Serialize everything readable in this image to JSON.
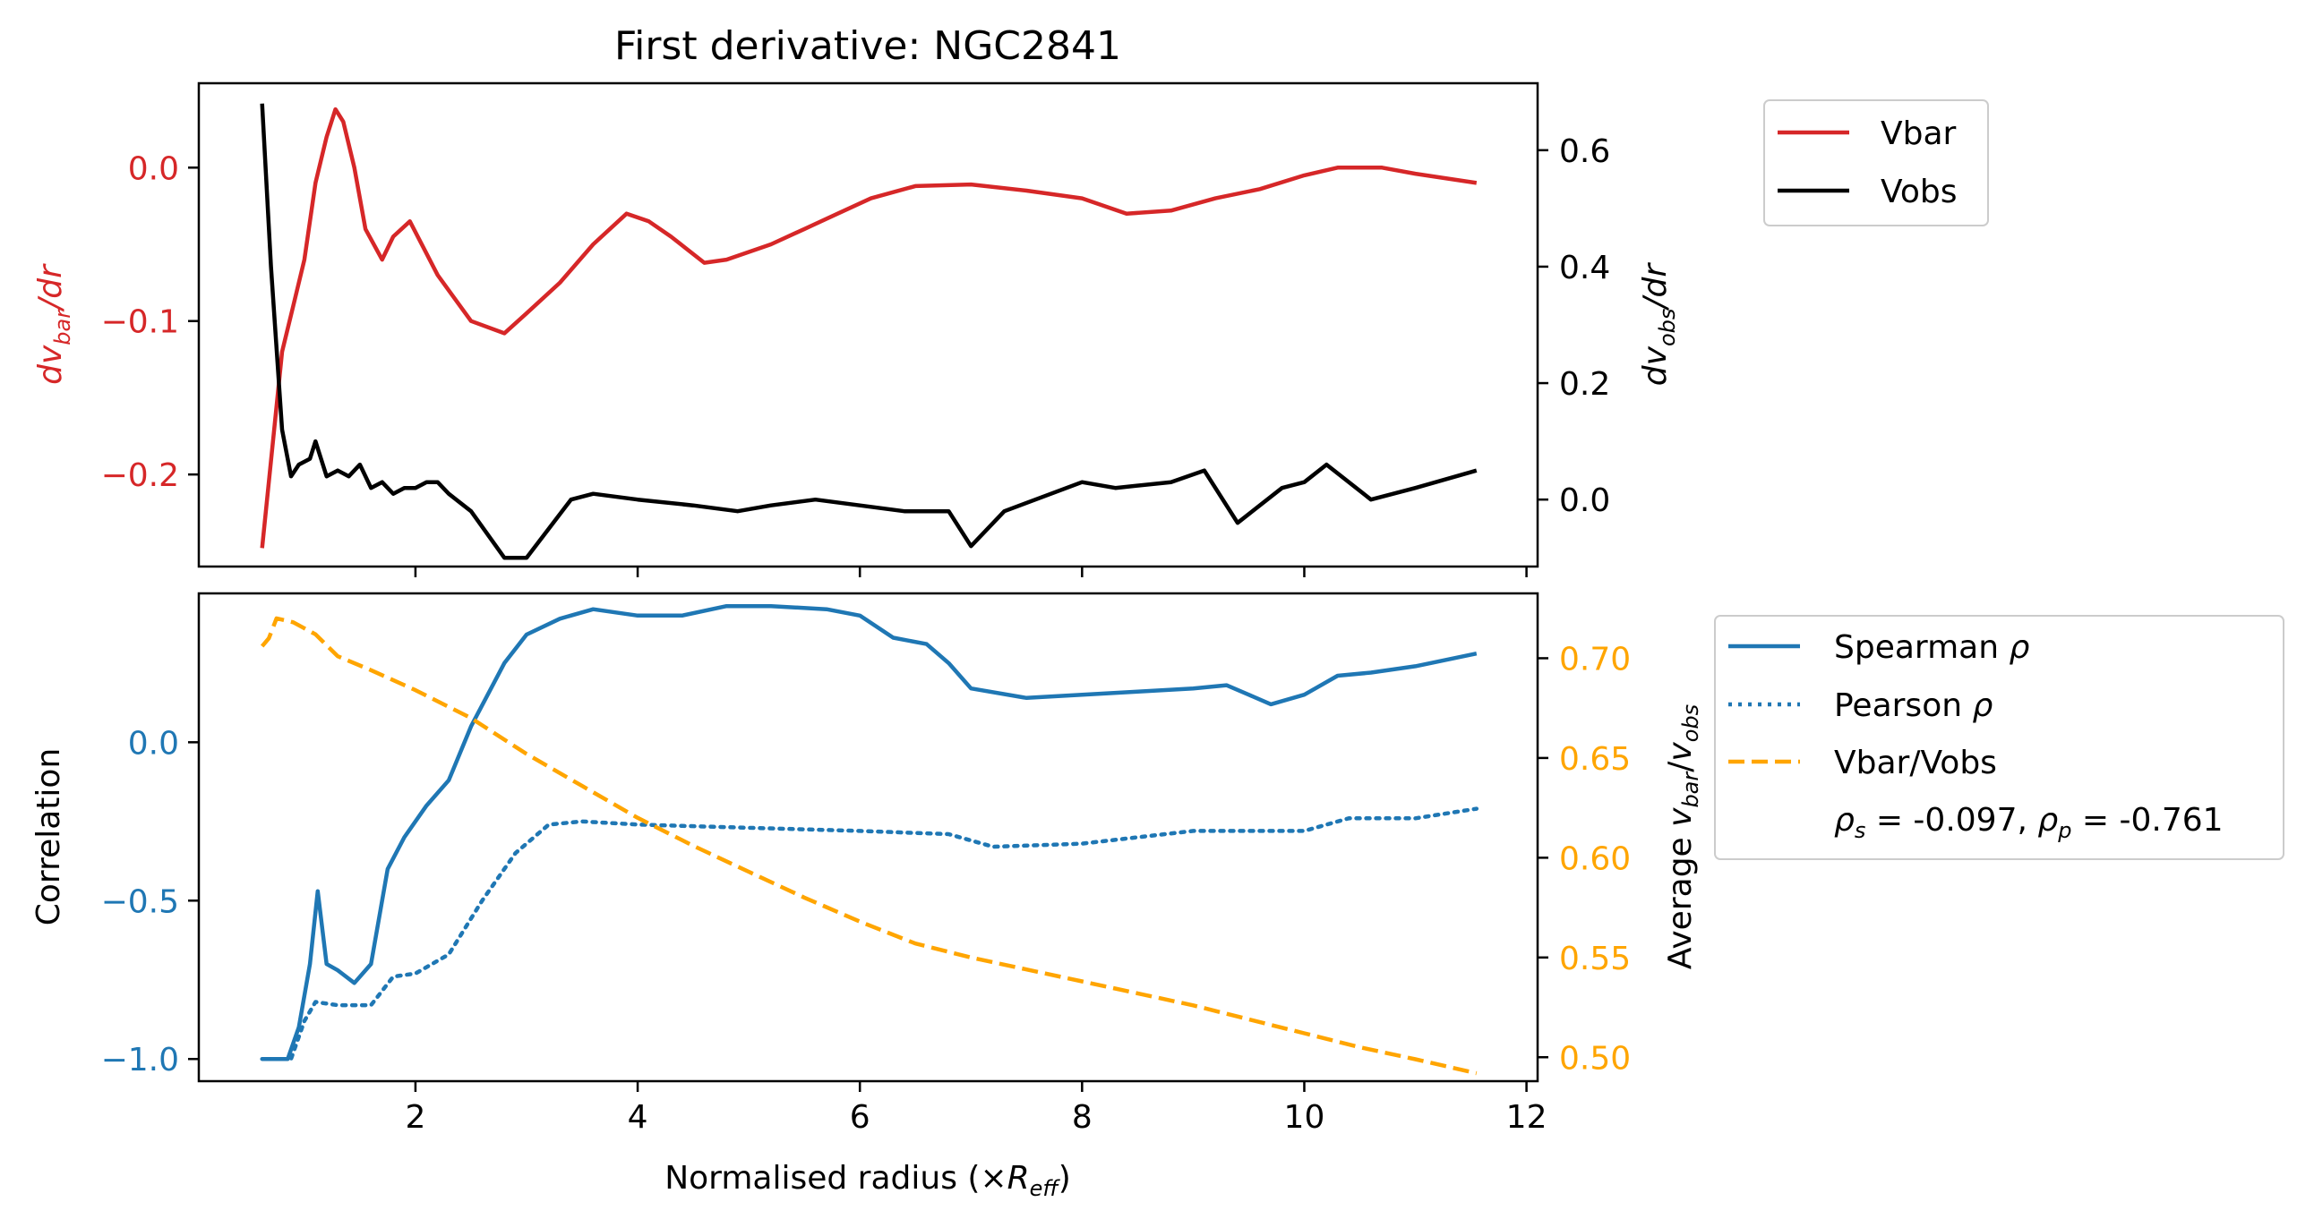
{
  "chart_data": [
    {
      "type": "line",
      "title": "First derivative: NGC2841",
      "ylabel_left": {
        "main": "dv",
        "sub": "bar",
        "tail": "/dr"
      },
      "ylabel_right": {
        "main": "dv",
        "sub": "obs",
        "tail": "/dr"
      },
      "ylim_left": [
        -0.26,
        0.055
      ],
      "ylim_right": [
        -0.115,
        0.715
      ],
      "xlim": [
        0.05,
        12.1
      ],
      "yticks_left": [
        "−0.2",
        "−0.1",
        "0.0"
      ],
      "yticks_left_values": [
        -0.2,
        -0.1,
        0.0
      ],
      "yticks_right": [
        "0.0",
        "0.2",
        "0.4",
        "0.6"
      ],
      "yticks_right_values": [
        0.0,
        0.2,
        0.4,
        0.6
      ],
      "left_color": "#d62728",
      "legend": {
        "placement": "outside-right-top",
        "entries": [
          "Vbar",
          "Vobs"
        ]
      },
      "series": [
        {
          "name": "Vbar",
          "axis": "left",
          "color": "#d62728",
          "style": "solid",
          "x": [
            0.62,
            0.8,
            0.9,
            1.0,
            1.1,
            1.2,
            1.28,
            1.35,
            1.45,
            1.55,
            1.7,
            1.8,
            1.95,
            2.2,
            2.5,
            2.8,
            3.0,
            3.3,
            3.6,
            3.9,
            4.1,
            4.3,
            4.6,
            4.8,
            5.2,
            5.5,
            5.8,
            6.1,
            6.5,
            7.0,
            7.5,
            8.0,
            8.4,
            8.8,
            9.2,
            9.6,
            10.0,
            10.3,
            10.7,
            11.0,
            11.55
          ],
          "y": [
            -0.248,
            -0.12,
            -0.09,
            -0.06,
            -0.01,
            0.02,
            0.038,
            0.03,
            0.0,
            -0.04,
            -0.06,
            -0.045,
            -0.035,
            -0.07,
            -0.1,
            -0.108,
            -0.095,
            -0.075,
            -0.05,
            -0.03,
            -0.035,
            -0.045,
            -0.062,
            -0.06,
            -0.05,
            -0.04,
            -0.03,
            -0.02,
            -0.012,
            -0.011,
            -0.015,
            -0.02,
            -0.03,
            -0.028,
            -0.02,
            -0.014,
            -0.005,
            0.0,
            0.0,
            -0.004,
            -0.01
          ]
        },
        {
          "name": "Vobs",
          "axis": "right",
          "color": "#000000",
          "style": "solid",
          "x": [
            0.62,
            0.7,
            0.8,
            0.88,
            0.95,
            1.05,
            1.1,
            1.2,
            1.3,
            1.4,
            1.5,
            1.6,
            1.7,
            1.8,
            1.9,
            2.0,
            2.1,
            2.2,
            2.3,
            2.5,
            2.8,
            3.0,
            3.2,
            3.4,
            3.6,
            4.0,
            4.5,
            4.9,
            5.2,
            5.6,
            6.0,
            6.4,
            6.8,
            7.0,
            7.3,
            8.0,
            8.3,
            8.8,
            9.1,
            9.4,
            9.8,
            10.0,
            10.2,
            10.6,
            11.0,
            11.55
          ],
          "y": [
            0.68,
            0.4,
            0.12,
            0.04,
            0.06,
            0.07,
            0.1,
            0.04,
            0.05,
            0.04,
            0.06,
            0.02,
            0.03,
            0.01,
            0.02,
            0.02,
            0.03,
            0.03,
            0.01,
            -0.02,
            -0.1,
            -0.1,
            -0.05,
            0.0,
            0.01,
            0.0,
            -0.01,
            -0.02,
            -0.01,
            0.0,
            -0.01,
            -0.02,
            -0.02,
            -0.08,
            -0.02,
            0.03,
            0.02,
            0.03,
            0.05,
            -0.04,
            0.02,
            0.03,
            0.06,
            0.0,
            0.02,
            0.05
          ]
        }
      ]
    },
    {
      "type": "line",
      "xlabel": {
        "main": "Normalised radius (×",
        "italic": "R",
        "sub": "eff",
        "tail": ")"
      },
      "ylabel_left": "Correlation",
      "ylabel_right": {
        "main": "Average ",
        "v1": "v",
        "s1": "bar",
        "slash": "/",
        "v2": "v",
        "s2": "obs"
      },
      "ylim_left": [
        -1.07,
        0.47
      ],
      "ylim_right": [
        0.488,
        0.7325
      ],
      "xlim": [
        0.05,
        12.1
      ],
      "xticks": [
        "2",
        "4",
        "6",
        "8",
        "10",
        "12"
      ],
      "xticks_values": [
        2,
        4,
        6,
        8,
        10,
        12
      ],
      "yticks_left": [
        "−1.0",
        "−0.5",
        "0.0"
      ],
      "yticks_left_values": [
        -1.0,
        -0.5,
        0.0
      ],
      "yticks_right": [
        "0.50",
        "0.55",
        "0.60",
        "0.65",
        "0.70"
      ],
      "yticks_right_values": [
        0.5,
        0.55,
        0.6,
        0.65,
        0.7
      ],
      "left_color": "#1f77b4",
      "right_color": "#ffa500",
      "legend": {
        "placement": "outside-right-top",
        "entries": [
          {
            "main": "Spearman ",
            "greek": "ρ"
          },
          {
            "main": "Pearson ",
            "greek": "ρ"
          },
          {
            "main": "Vbar/Vobs"
          }
        ],
        "stats": {
          "rs_sym": "ρ",
          "rs_sub": "s",
          "rs_val": " = -0.097, ",
          "rp_sym": "ρ",
          "rp_sub": "p",
          "rp_val": " = -0.761"
        }
      },
      "series": [
        {
          "name": "Spearman ρ",
          "axis": "left",
          "color": "#1f77b4",
          "style": "solid",
          "x": [
            0.62,
            0.85,
            0.95,
            1.05,
            1.12,
            1.2,
            1.3,
            1.45,
            1.6,
            1.75,
            1.9,
            2.1,
            2.3,
            2.5,
            2.8,
            3.0,
            3.3,
            3.6,
            4.0,
            4.4,
            4.8,
            5.2,
            5.7,
            6.0,
            6.3,
            6.6,
            6.8,
            7.0,
            7.5,
            8.0,
            8.5,
            9.0,
            9.3,
            9.5,
            9.7,
            10.0,
            10.3,
            10.6,
            11.0,
            11.55
          ],
          "y": [
            -1.0,
            -1.0,
            -0.9,
            -0.7,
            -0.47,
            -0.7,
            -0.72,
            -0.76,
            -0.7,
            -0.4,
            -0.3,
            -0.2,
            -0.12,
            0.05,
            0.25,
            0.34,
            0.39,
            0.42,
            0.4,
            0.4,
            0.43,
            0.43,
            0.42,
            0.4,
            0.33,
            0.31,
            0.25,
            0.17,
            0.14,
            0.15,
            0.16,
            0.17,
            0.18,
            0.15,
            0.12,
            0.15,
            0.21,
            0.22,
            0.24,
            0.28
          ]
        },
        {
          "name": "Pearson ρ",
          "axis": "left",
          "color": "#1f77b4",
          "style": "dotted",
          "x": [
            0.62,
            0.88,
            1.0,
            1.1,
            1.3,
            1.6,
            1.8,
            2.0,
            2.3,
            2.6,
            2.9,
            3.2,
            3.5,
            4.0,
            5.0,
            6.0,
            6.8,
            7.2,
            8.0,
            9.0,
            10.0,
            10.4,
            11.0,
            11.55
          ],
          "y": [
            -1.0,
            -1.0,
            -0.88,
            -0.82,
            -0.83,
            -0.83,
            -0.74,
            -0.73,
            -0.67,
            -0.5,
            -0.35,
            -0.26,
            -0.25,
            -0.26,
            -0.27,
            -0.28,
            -0.29,
            -0.33,
            -0.32,
            -0.28,
            -0.28,
            -0.24,
            -0.24,
            -0.21
          ]
        },
        {
          "name": "Vbar/Vobs",
          "axis": "right",
          "color": "#ffa500",
          "style": "dashed",
          "x": [
            0.62,
            0.68,
            0.75,
            0.9,
            1.1,
            1.3,
            1.6,
            2.0,
            2.5,
            3.0,
            3.5,
            4.0,
            4.5,
            5.0,
            5.5,
            6.0,
            6.5,
            7.0,
            7.5,
            8.0,
            8.5,
            9.0,
            9.5,
            10.0,
            10.5,
            11.0,
            11.55
          ],
          "y": [
            0.706,
            0.71,
            0.72,
            0.718,
            0.712,
            0.701,
            0.694,
            0.684,
            0.67,
            0.652,
            0.636,
            0.62,
            0.606,
            0.593,
            0.58,
            0.568,
            0.557,
            0.55,
            0.544,
            0.538,
            0.532,
            0.526,
            0.519,
            0.512,
            0.505,
            0.499,
            0.492
          ]
        }
      ]
    }
  ]
}
